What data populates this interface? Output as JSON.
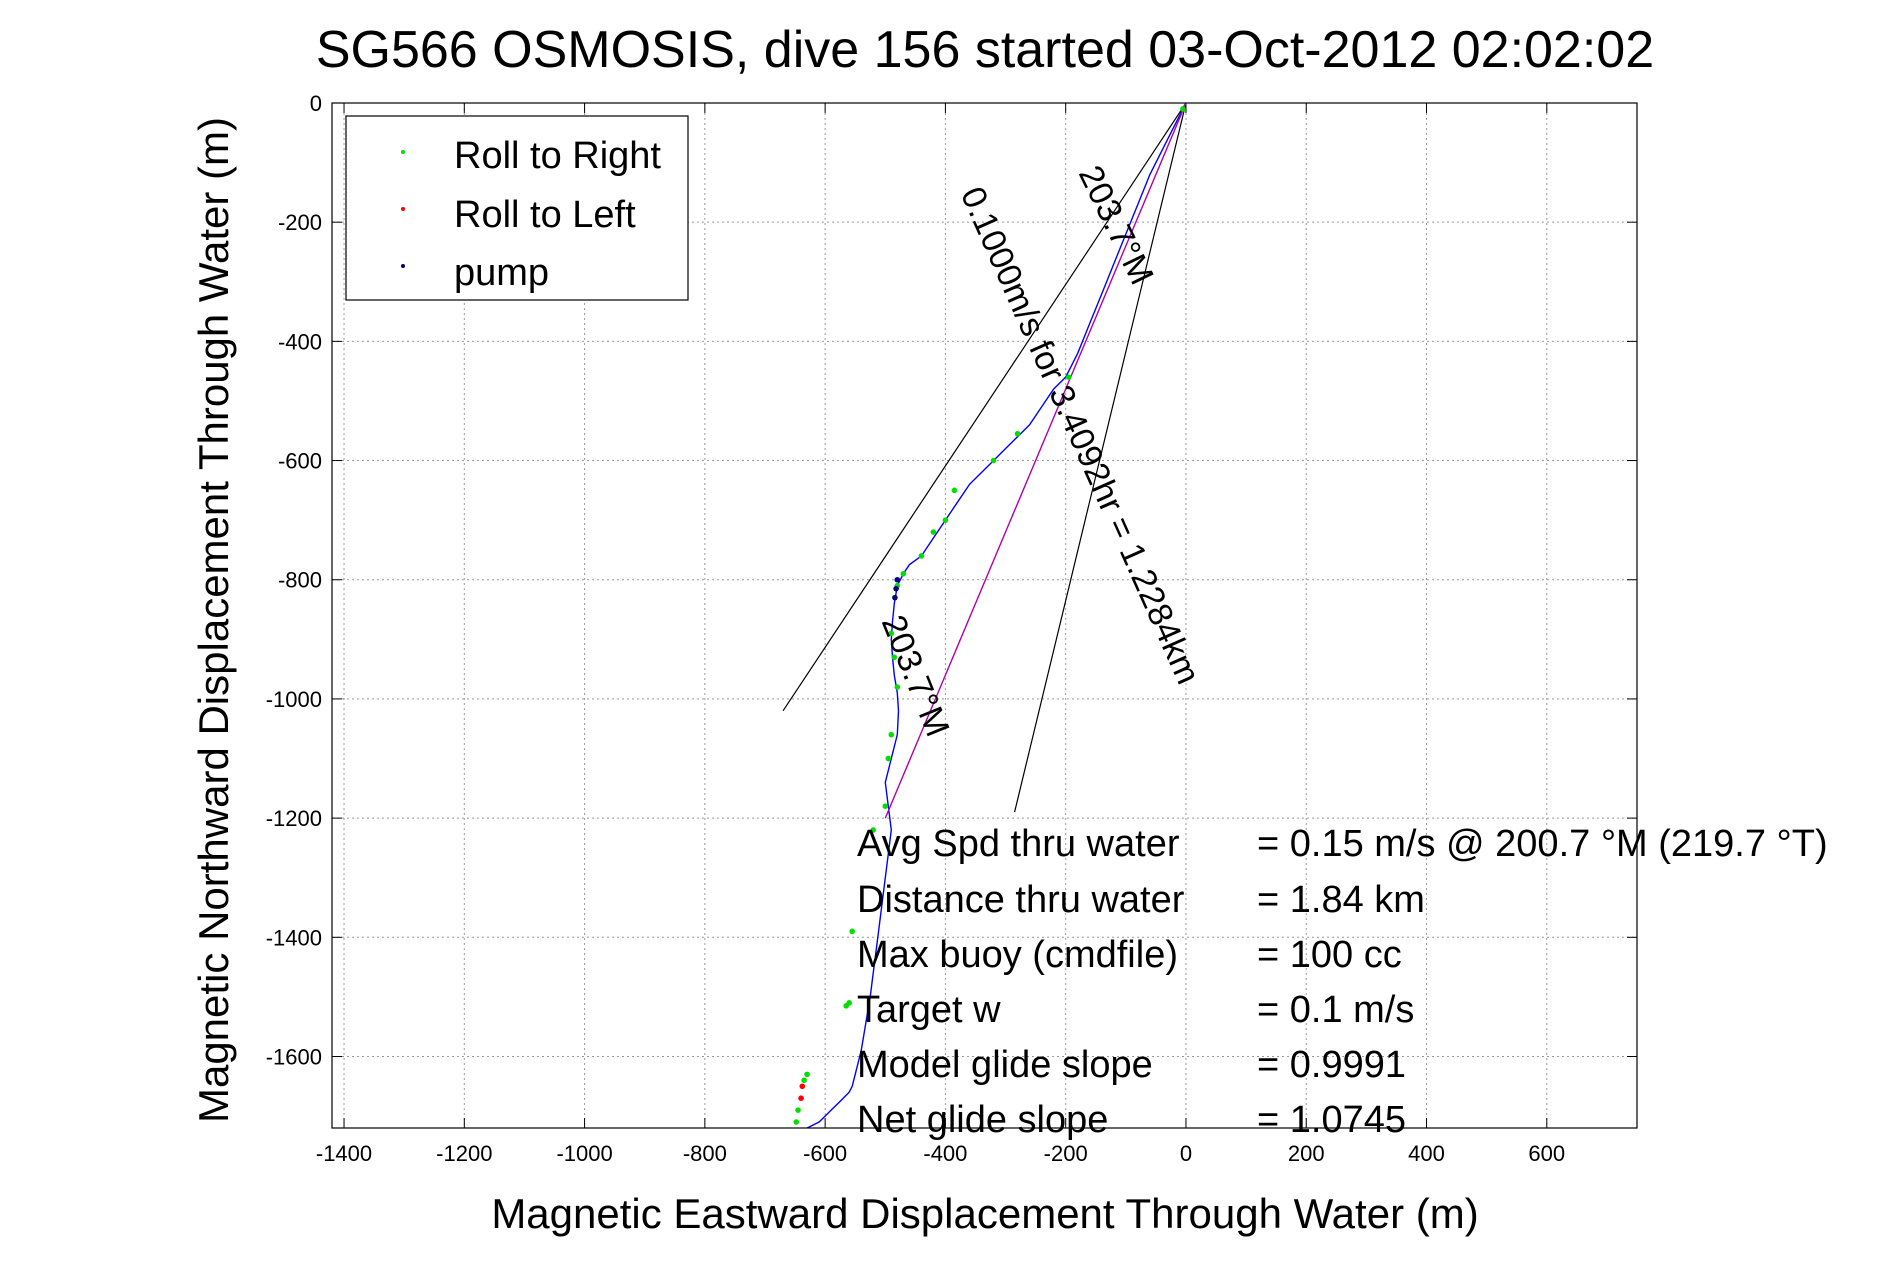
{
  "chart_data": {
    "type": "scatter",
    "title": "SG566 OSMOSIS, dive 156 started 03-Oct-2012 02:02:02",
    "xlabel": "Magnetic Eastward Displacement Through Water (m)",
    "ylabel": "Magnetic Northward Displacement Through Water (m)",
    "xlim": [
      -1420,
      750
    ],
    "ylim": [
      -1720,
      0
    ],
    "xticks": [
      -1400,
      -1200,
      -1000,
      -800,
      -600,
      -400,
      -200,
      0,
      200,
      400,
      600
    ],
    "yticks": [
      0,
      -200,
      -400,
      -600,
      -800,
      -1000,
      -1200,
      -1400,
      -1600
    ],
    "grid": true,
    "legend": {
      "position": "top-left",
      "entries": [
        {
          "label": "Roll to Right",
          "color": "#00e000"
        },
        {
          "label": "Roll to Left",
          "color": "#ff0000"
        },
        {
          "label": "pump",
          "color": "#000080"
        }
      ]
    },
    "series": [
      {
        "color": "#0000ff",
        "x": [
          0,
          -20,
          -40,
          -60,
          -80,
          -100,
          -120,
          -140,
          -160,
          -180,
          -200,
          -220,
          -240,
          -260,
          -280,
          -300,
          -320,
          -340,
          -360,
          -380,
          -400,
          -420,
          -440,
          -460,
          -470,
          -480,
          -485,
          -488,
          -490,
          -488,
          -485,
          -480,
          -478,
          -480,
          -490,
          -500,
          -495,
          -490,
          -495,
          -500,
          -505,
          -510,
          -515,
          -520,
          -525,
          -530,
          -535,
          -540,
          -545,
          -550,
          -555,
          -560,
          -570,
          -580,
          -590,
          -600,
          -610,
          -620,
          -630,
          -640,
          -650
        ],
        "y": [
          0,
          -40,
          -80,
          -120,
          -170,
          -220,
          -270,
          -320,
          -370,
          -420,
          -460,
          -480,
          -510,
          -540,
          -560,
          -580,
          -600,
          -620,
          -640,
          -670,
          -700,
          -730,
          -760,
          -775,
          -790,
          -810,
          -840,
          -870,
          -900,
          -930,
          -960,
          -990,
          -1020,
          -1060,
          -1100,
          -1140,
          -1180,
          -1220,
          -1260,
          -1300,
          -1340,
          -1380,
          -1420,
          -1460,
          -1500,
          -1530,
          -1560,
          -1590,
          -1610,
          -1630,
          -1650,
          -1660,
          -1670,
          -1680,
          -1690,
          -1700,
          -1710,
          -1715,
          -1720,
          -1725,
          -1730
        ]
      },
      {
        "color": "#b000b0",
        "x": [
          0,
          -100,
          -200,
          -300,
          -400,
          -500
        ],
        "y": [
          0,
          -240,
          -480,
          -720,
          -960,
          -1200
        ]
      }
    ],
    "points": {
      "green": [
        [
          -5,
          -10
        ],
        [
          -195,
          -460
        ],
        [
          -280,
          -555
        ],
        [
          -320,
          -600
        ],
        [
          -385,
          -650
        ],
        [
          -400,
          -700
        ],
        [
          -420,
          -720
        ],
        [
          -440,
          -760
        ],
        [
          -470,
          -790
        ],
        [
          -480,
          -810
        ],
        [
          -490,
          -890
        ],
        [
          -485,
          -930
        ],
        [
          -480,
          -980
        ],
        [
          -490,
          -1060
        ],
        [
          -495,
          -1100
        ],
        [
          -500,
          -1180
        ],
        [
          -520,
          -1220
        ],
        [
          -555,
          -1390
        ],
        [
          -560,
          -1510
        ],
        [
          -565,
          -1515
        ],
        [
          -630,
          -1630
        ],
        [
          -635,
          -1640
        ],
        [
          -645,
          -1690
        ],
        [
          -648,
          -1710
        ]
      ],
      "red": [
        [
          -638,
          -1650
        ],
        [
          -640,
          -1670
        ]
      ],
      "pump": [
        [
          -480,
          -800
        ],
        [
          -482,
          -815
        ],
        [
          -484,
          -830
        ]
      ]
    },
    "lines": [
      {
        "x": [
          0,
          -670
        ],
        "y": [
          0,
          -1020
        ]
      },
      {
        "x": [
          0,
          -285
        ],
        "y": [
          0,
          -1190
        ]
      }
    ],
    "annotations": {
      "heading_top": "203.7°M",
      "speed_line": "0.1000m/s for 3.4092hr = 1.2284km",
      "heading_mid": "203.7°M"
    },
    "stats": [
      {
        "label": "Avg Spd thru water",
        "value": "=  0.15 m/s @ 200.7 °M (219.7 °T)"
      },
      {
        "label": "Distance thru water",
        "value": "=  1.84 km"
      },
      {
        "label": "Max buoy (cmdfile)",
        "value": "= 100 cc"
      },
      {
        "label": "Target w",
        "value": "= 0.1 m/s"
      },
      {
        "label": "Model glide slope",
        "value": "= 0.9991"
      },
      {
        "label": "Net glide slope",
        "value": "= 1.0745"
      }
    ]
  }
}
